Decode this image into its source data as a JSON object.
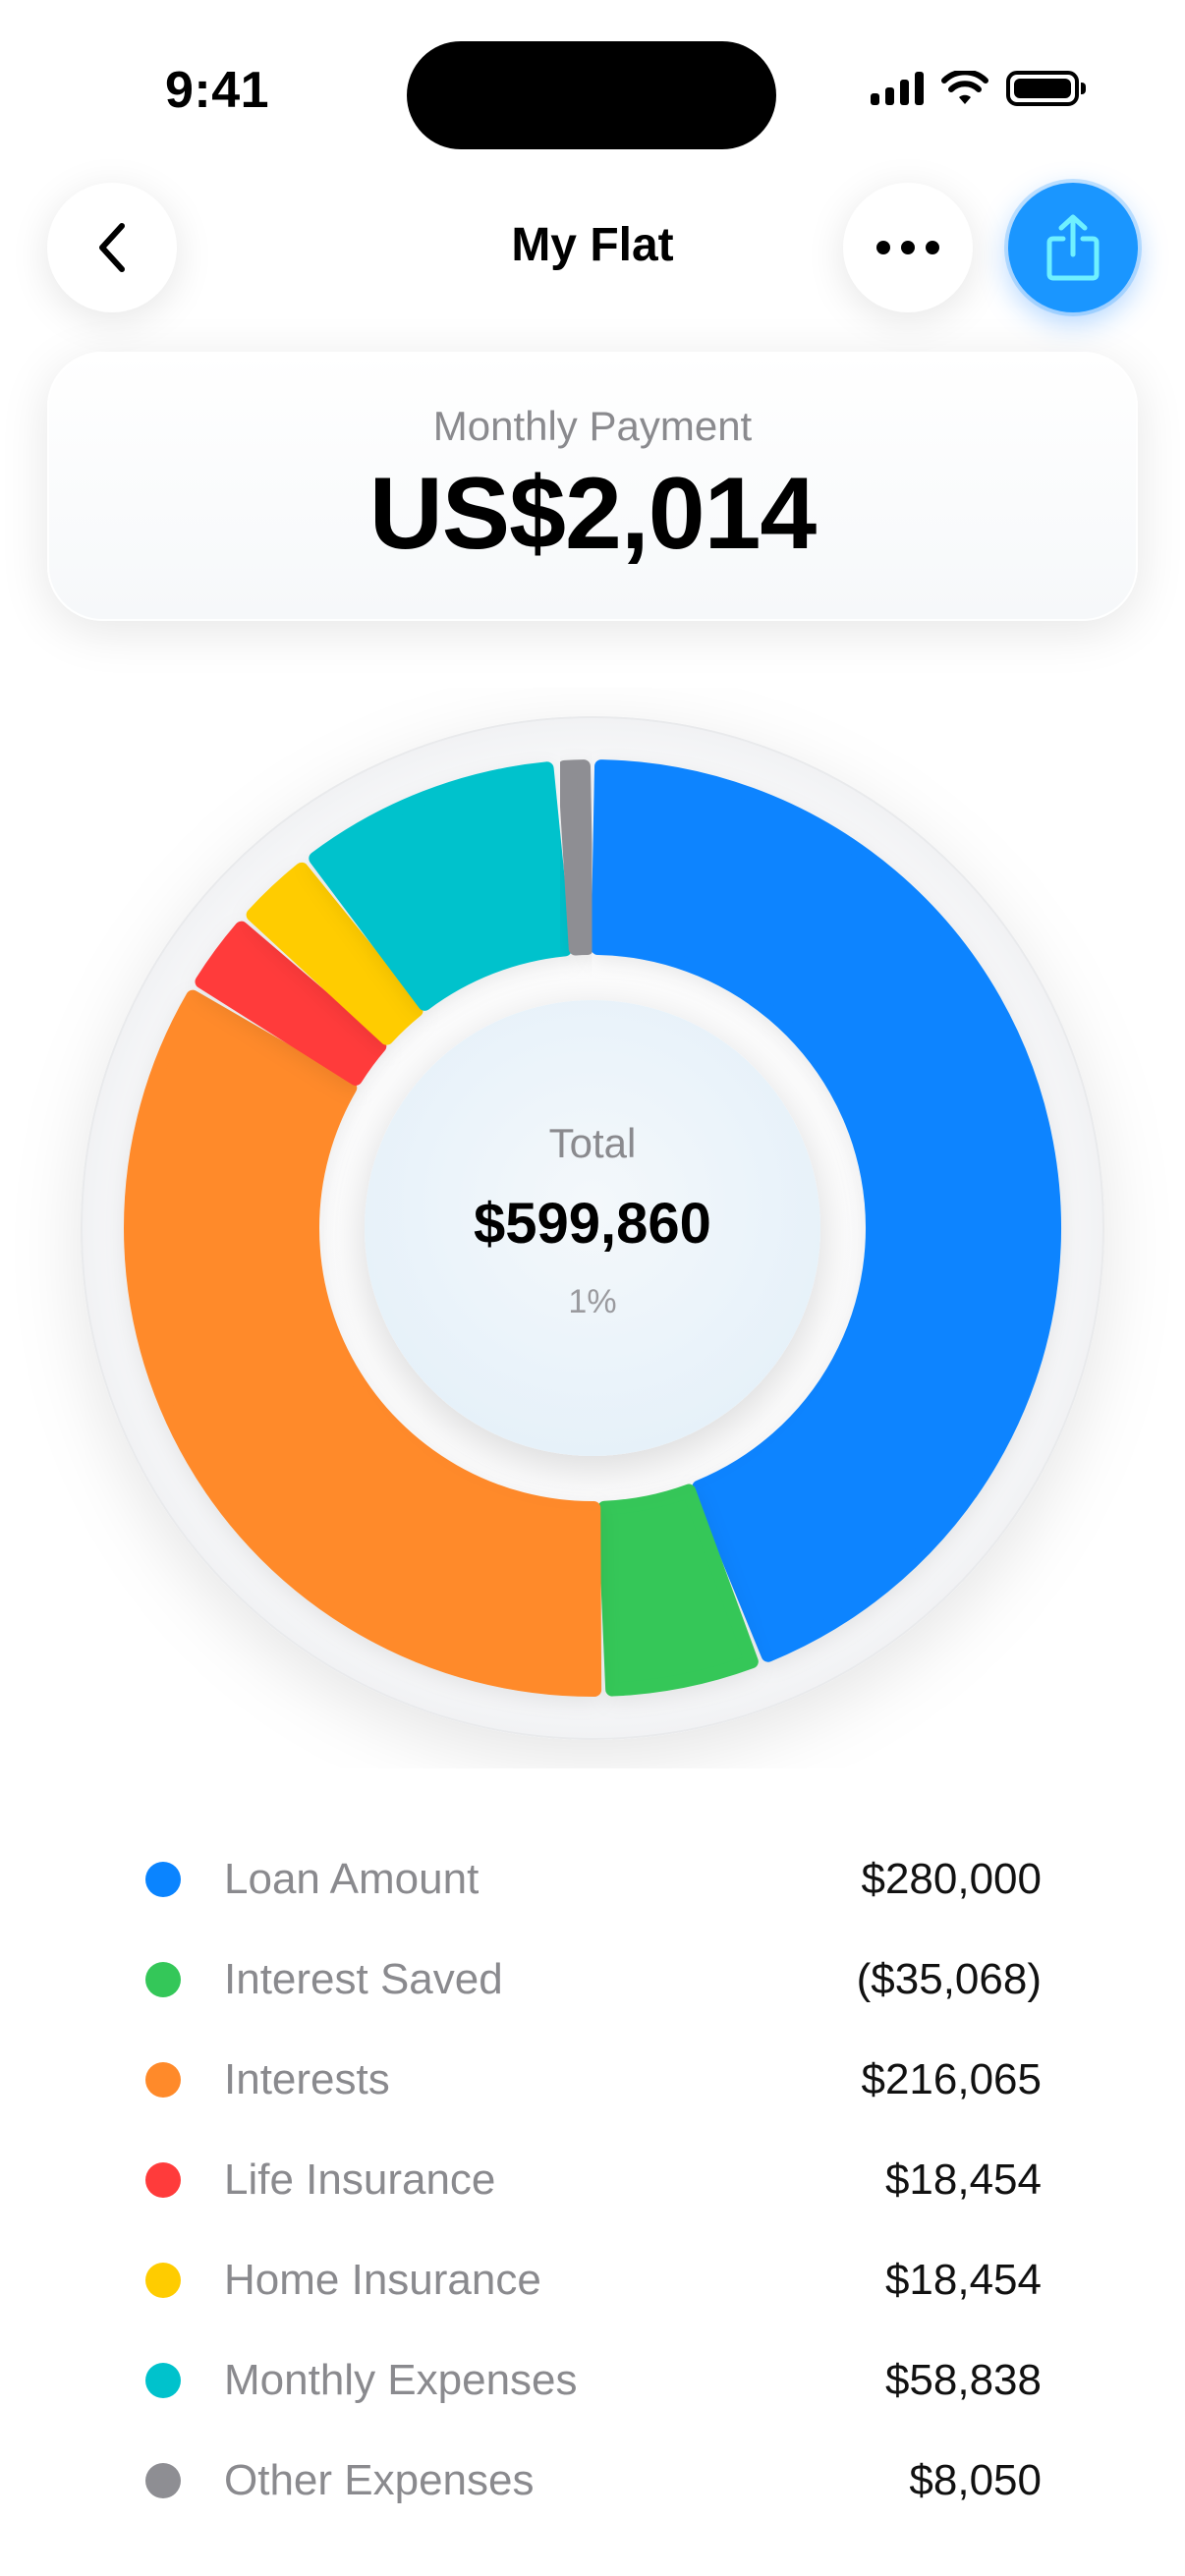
{
  "status_bar": {
    "time": "9:41"
  },
  "nav": {
    "title": "My Flat"
  },
  "payment": {
    "label": "Monthly Payment",
    "value": "US$2,014"
  },
  "chart_data": {
    "type": "pie",
    "center": {
      "label": "Total",
      "value": "$599,860",
      "subtext": "1%"
    },
    "categories": [
      "Loan Amount",
      "Interest Saved",
      "Interests",
      "Life Insurance",
      "Home Insurance",
      "Monthly Expenses",
      "Other Expenses"
    ],
    "values": [
      280000,
      35068,
      216065,
      18454,
      18454,
      58838,
      8050
    ],
    "display_values": [
      "$280,000",
      "($35,068)",
      "$216,065",
      "$18,454",
      "$18,454",
      "$58,838",
      "$8,050"
    ],
    "colors": [
      "#0a84ff",
      "#34c759",
      "#ff8a2a",
      "#ff3b3b",
      "#ffcc00",
      "#00c2cc",
      "#8e8e93"
    ]
  },
  "icons": {
    "back": "chevron-left-icon",
    "more": "ellipsis-icon",
    "share": "share-icon"
  }
}
